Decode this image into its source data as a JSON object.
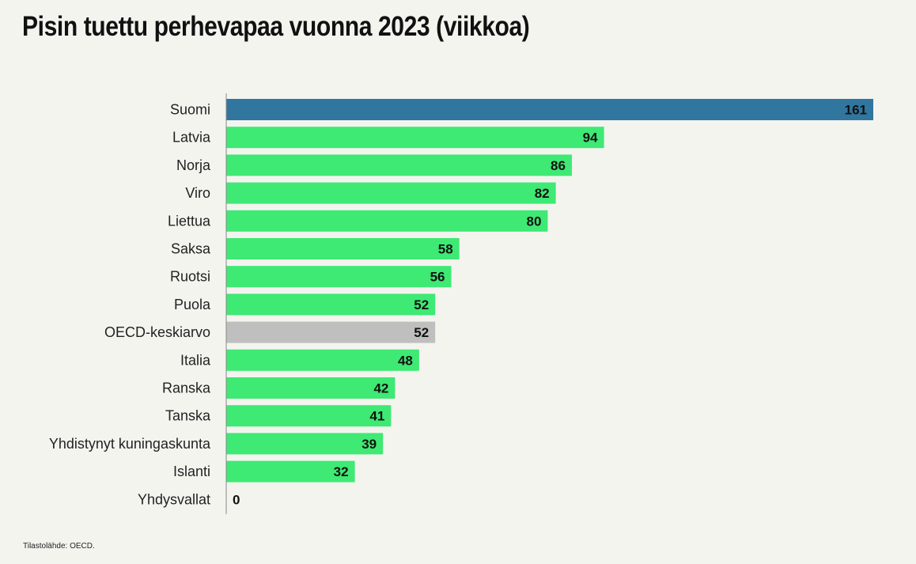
{
  "chart_data": {
    "type": "bar",
    "orientation": "horizontal",
    "title": "Pisin tuettu perhevapaa vuonna 2023 (viikkoa)",
    "source": "Tilastolähde: OECD.",
    "xlabel": "",
    "ylabel": "",
    "xlim": [
      0,
      161
    ],
    "grid": false,
    "categories": [
      "Suomi",
      "Latvia",
      "Norja",
      "Viro",
      "Liettua",
      "Saksa",
      "Ruotsi",
      "Puola",
      "OECD-keskiarvo",
      "Italia",
      "Ranska",
      "Tanska",
      "Yhdistynyt kuningaskunta",
      "Islanti",
      "Yhdysvallat"
    ],
    "values": [
      161,
      94,
      86,
      82,
      80,
      58,
      56,
      52,
      52,
      48,
      42,
      41,
      39,
      32,
      0
    ],
    "highlight": {
      "Suomi": "#31769f",
      "OECD-keskiarvo": "#bfbfbf"
    },
    "default_color": "#3ee974"
  }
}
